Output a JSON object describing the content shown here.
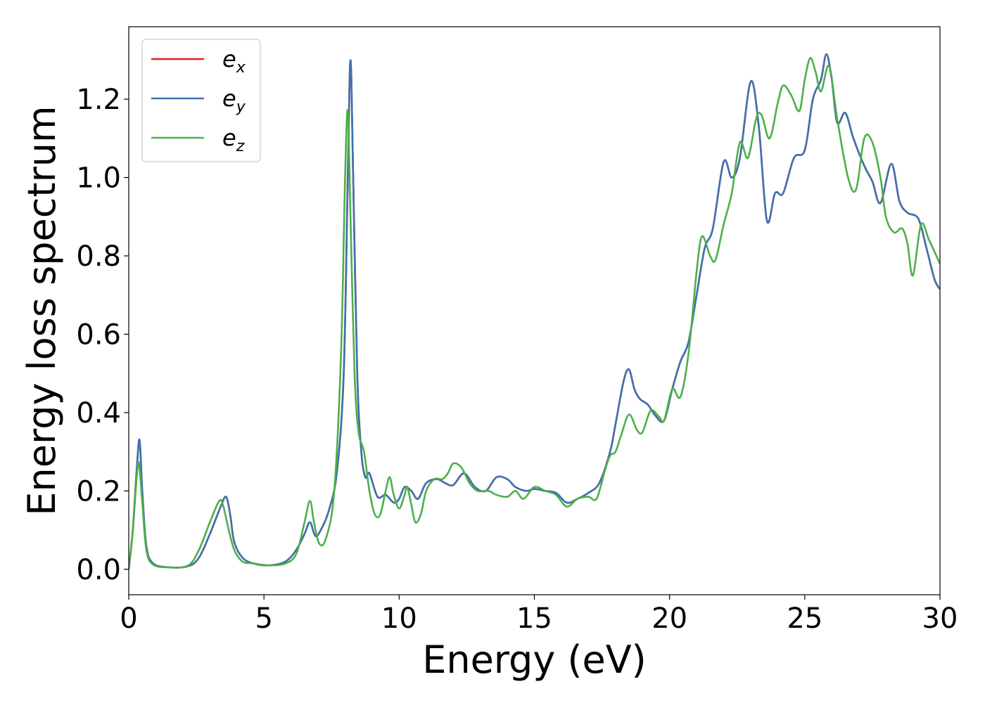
{
  "chart_data": {
    "type": "line",
    "title": "",
    "xlabel": "Energy (eV)",
    "ylabel": "Energy loss spectrum",
    "xlim": [
      0,
      30
    ],
    "ylim": [
      -0.065,
      1.385
    ],
    "xticks": [
      0,
      5,
      10,
      15,
      20,
      25,
      30
    ],
    "yticks": [
      0.0,
      0.2,
      0.4,
      0.6,
      0.8,
      1.0,
      1.2
    ],
    "xtick_labels": [
      "0",
      "5",
      "10",
      "15",
      "20",
      "25",
      "30"
    ],
    "ytick_labels": [
      "0.0",
      "0.2",
      "0.4",
      "0.6",
      "0.8",
      "1.0",
      "1.2"
    ],
    "grid": false,
    "legend": "top-left",
    "series": [
      {
        "name": "e",
        "sub": "x",
        "color": "#e41a1c",
        "points": [
          [
            0,
            0
          ],
          [
            0.15,
            0.1
          ],
          [
            0.3,
            0.26
          ],
          [
            0.4,
            0.33
          ],
          [
            0.5,
            0.2
          ],
          [
            0.65,
            0.06
          ],
          [
            0.9,
            0.015
          ],
          [
            1.5,
            0.005
          ],
          [
            2.2,
            0.008
          ],
          [
            2.6,
            0.03
          ],
          [
            3.0,
            0.09
          ],
          [
            3.4,
            0.16
          ],
          [
            3.6,
            0.185
          ],
          [
            3.75,
            0.14
          ],
          [
            3.9,
            0.07
          ],
          [
            4.2,
            0.03
          ],
          [
            4.6,
            0.015
          ],
          [
            5.2,
            0.01
          ],
          [
            5.8,
            0.02
          ],
          [
            6.2,
            0.05
          ],
          [
            6.5,
            0.09
          ],
          [
            6.7,
            0.12
          ],
          [
            6.9,
            0.085
          ],
          [
            7.1,
            0.1
          ],
          [
            7.4,
            0.15
          ],
          [
            7.7,
            0.25
          ],
          [
            7.95,
            0.5
          ],
          [
            8.1,
            1.0
          ],
          [
            8.2,
            1.3
          ],
          [
            8.3,
            1.0
          ],
          [
            8.45,
            0.5
          ],
          [
            8.6,
            0.3
          ],
          [
            8.75,
            0.235
          ],
          [
            8.9,
            0.245
          ],
          [
            9.2,
            0.185
          ],
          [
            9.5,
            0.19
          ],
          [
            9.8,
            0.17
          ],
          [
            10.0,
            0.18
          ],
          [
            10.2,
            0.21
          ],
          [
            10.45,
            0.2
          ],
          [
            10.7,
            0.18
          ],
          [
            11.0,
            0.22
          ],
          [
            11.4,
            0.23
          ],
          [
            11.7,
            0.22
          ],
          [
            12.0,
            0.215
          ],
          [
            12.4,
            0.245
          ],
          [
            12.8,
            0.21
          ],
          [
            13.2,
            0.2
          ],
          [
            13.6,
            0.235
          ],
          [
            14.0,
            0.23
          ],
          [
            14.3,
            0.21
          ],
          [
            14.7,
            0.2
          ],
          [
            15.0,
            0.205
          ],
          [
            15.4,
            0.2
          ],
          [
            15.8,
            0.195
          ],
          [
            16.2,
            0.17
          ],
          [
            16.6,
            0.18
          ],
          [
            17.0,
            0.195
          ],
          [
            17.4,
            0.22
          ],
          [
            17.8,
            0.3
          ],
          [
            18.0,
            0.37
          ],
          [
            18.3,
            0.48
          ],
          [
            18.5,
            0.51
          ],
          [
            18.7,
            0.46
          ],
          [
            18.9,
            0.435
          ],
          [
            19.2,
            0.42
          ],
          [
            19.5,
            0.39
          ],
          [
            19.8,
            0.38
          ],
          [
            20.1,
            0.46
          ],
          [
            20.4,
            0.53
          ],
          [
            20.7,
            0.58
          ],
          [
            21.0,
            0.7
          ],
          [
            21.3,
            0.82
          ],
          [
            21.6,
            0.87
          ],
          [
            22.0,
            1.04
          ],
          [
            22.3,
            1.0
          ],
          [
            22.6,
            1.05
          ],
          [
            23.0,
            1.245
          ],
          [
            23.3,
            1.13
          ],
          [
            23.6,
            0.89
          ],
          [
            23.9,
            0.96
          ],
          [
            24.2,
            0.96
          ],
          [
            24.6,
            1.05
          ],
          [
            25.0,
            1.07
          ],
          [
            25.3,
            1.2
          ],
          [
            25.6,
            1.25
          ],
          [
            25.8,
            1.315
          ],
          [
            26.0,
            1.25
          ],
          [
            26.2,
            1.14
          ],
          [
            26.5,
            1.165
          ],
          [
            26.8,
            1.1
          ],
          [
            27.2,
            1.03
          ],
          [
            27.5,
            0.99
          ],
          [
            27.8,
            0.935
          ],
          [
            28.2,
            1.035
          ],
          [
            28.5,
            0.94
          ],
          [
            28.8,
            0.91
          ],
          [
            29.2,
            0.895
          ],
          [
            29.5,
            0.82
          ],
          [
            29.8,
            0.74
          ],
          [
            30.0,
            0.715
          ]
        ]
      },
      {
        "name": "e",
        "sub": "y",
        "color": "#3d73b0",
        "points": [
          [
            0,
            0
          ],
          [
            0.15,
            0.1
          ],
          [
            0.3,
            0.26
          ],
          [
            0.4,
            0.33
          ],
          [
            0.5,
            0.2
          ],
          [
            0.65,
            0.06
          ],
          [
            0.9,
            0.015
          ],
          [
            1.5,
            0.005
          ],
          [
            2.2,
            0.008
          ],
          [
            2.6,
            0.03
          ],
          [
            3.0,
            0.09
          ],
          [
            3.4,
            0.16
          ],
          [
            3.6,
            0.185
          ],
          [
            3.75,
            0.14
          ],
          [
            3.9,
            0.07
          ],
          [
            4.2,
            0.03
          ],
          [
            4.6,
            0.015
          ],
          [
            5.2,
            0.01
          ],
          [
            5.8,
            0.02
          ],
          [
            6.2,
            0.05
          ],
          [
            6.5,
            0.09
          ],
          [
            6.7,
            0.12
          ],
          [
            6.9,
            0.085
          ],
          [
            7.1,
            0.1
          ],
          [
            7.4,
            0.15
          ],
          [
            7.7,
            0.25
          ],
          [
            7.95,
            0.5
          ],
          [
            8.1,
            1.0
          ],
          [
            8.2,
            1.3
          ],
          [
            8.3,
            1.0
          ],
          [
            8.45,
            0.5
          ],
          [
            8.6,
            0.3
          ],
          [
            8.75,
            0.235
          ],
          [
            8.9,
            0.245
          ],
          [
            9.2,
            0.185
          ],
          [
            9.5,
            0.19
          ],
          [
            9.8,
            0.17
          ],
          [
            10.0,
            0.18
          ],
          [
            10.2,
            0.21
          ],
          [
            10.45,
            0.2
          ],
          [
            10.7,
            0.18
          ],
          [
            11.0,
            0.22
          ],
          [
            11.4,
            0.23
          ],
          [
            11.7,
            0.22
          ],
          [
            12.0,
            0.215
          ],
          [
            12.4,
            0.245
          ],
          [
            12.8,
            0.21
          ],
          [
            13.2,
            0.2
          ],
          [
            13.6,
            0.235
          ],
          [
            14.0,
            0.23
          ],
          [
            14.3,
            0.21
          ],
          [
            14.7,
            0.2
          ],
          [
            15.0,
            0.205
          ],
          [
            15.4,
            0.2
          ],
          [
            15.8,
            0.195
          ],
          [
            16.2,
            0.17
          ],
          [
            16.6,
            0.18
          ],
          [
            17.0,
            0.195
          ],
          [
            17.4,
            0.22
          ],
          [
            17.8,
            0.3
          ],
          [
            18.0,
            0.37
          ],
          [
            18.3,
            0.48
          ],
          [
            18.5,
            0.51
          ],
          [
            18.7,
            0.46
          ],
          [
            18.9,
            0.435
          ],
          [
            19.2,
            0.42
          ],
          [
            19.5,
            0.39
          ],
          [
            19.8,
            0.38
          ],
          [
            20.1,
            0.46
          ],
          [
            20.4,
            0.53
          ],
          [
            20.7,
            0.58
          ],
          [
            21.0,
            0.7
          ],
          [
            21.3,
            0.82
          ],
          [
            21.6,
            0.87
          ],
          [
            22.0,
            1.04
          ],
          [
            22.3,
            1.0
          ],
          [
            22.6,
            1.05
          ],
          [
            23.0,
            1.245
          ],
          [
            23.3,
            1.13
          ],
          [
            23.6,
            0.89
          ],
          [
            23.9,
            0.96
          ],
          [
            24.2,
            0.96
          ],
          [
            24.6,
            1.05
          ],
          [
            25.0,
            1.07
          ],
          [
            25.3,
            1.2
          ],
          [
            25.6,
            1.25
          ],
          [
            25.8,
            1.315
          ],
          [
            26.0,
            1.25
          ],
          [
            26.2,
            1.14
          ],
          [
            26.5,
            1.165
          ],
          [
            26.8,
            1.1
          ],
          [
            27.2,
            1.03
          ],
          [
            27.5,
            0.99
          ],
          [
            27.8,
            0.935
          ],
          [
            28.2,
            1.035
          ],
          [
            28.5,
            0.94
          ],
          [
            28.8,
            0.91
          ],
          [
            29.2,
            0.895
          ],
          [
            29.5,
            0.82
          ],
          [
            29.8,
            0.74
          ],
          [
            30.0,
            0.715
          ]
        ]
      },
      {
        "name": "e",
        "sub": "z",
        "color": "#4daf4a",
        "points": [
          [
            0,
            0
          ],
          [
            0.15,
            0.1
          ],
          [
            0.3,
            0.24
          ],
          [
            0.38,
            0.27
          ],
          [
            0.5,
            0.17
          ],
          [
            0.65,
            0.05
          ],
          [
            0.9,
            0.012
          ],
          [
            1.5,
            0.005
          ],
          [
            2.2,
            0.01
          ],
          [
            2.6,
            0.05
          ],
          [
            3.0,
            0.12
          ],
          [
            3.35,
            0.175
          ],
          [
            3.5,
            0.16
          ],
          [
            3.7,
            0.1
          ],
          [
            3.9,
            0.05
          ],
          [
            4.2,
            0.02
          ],
          [
            4.6,
            0.015
          ],
          [
            5.2,
            0.01
          ],
          [
            5.8,
            0.015
          ],
          [
            6.2,
            0.04
          ],
          [
            6.5,
            0.12
          ],
          [
            6.7,
            0.175
          ],
          [
            6.85,
            0.12
          ],
          [
            7.05,
            0.065
          ],
          [
            7.3,
            0.08
          ],
          [
            7.6,
            0.2
          ],
          [
            7.85,
            0.55
          ],
          [
            8.0,
            1.0
          ],
          [
            8.1,
            1.17
          ],
          [
            8.2,
            0.9
          ],
          [
            8.35,
            0.5
          ],
          [
            8.5,
            0.35
          ],
          [
            8.7,
            0.3
          ],
          [
            8.9,
            0.2
          ],
          [
            9.1,
            0.14
          ],
          [
            9.3,
            0.14
          ],
          [
            9.5,
            0.2
          ],
          [
            9.65,
            0.235
          ],
          [
            9.8,
            0.19
          ],
          [
            10.0,
            0.155
          ],
          [
            10.2,
            0.19
          ],
          [
            10.3,
            0.21
          ],
          [
            10.45,
            0.165
          ],
          [
            10.6,
            0.12
          ],
          [
            10.8,
            0.14
          ],
          [
            11.0,
            0.2
          ],
          [
            11.3,
            0.23
          ],
          [
            11.6,
            0.23
          ],
          [
            11.8,
            0.245
          ],
          [
            12.0,
            0.27
          ],
          [
            12.3,
            0.26
          ],
          [
            12.6,
            0.22
          ],
          [
            12.9,
            0.2
          ],
          [
            13.3,
            0.2
          ],
          [
            13.6,
            0.19
          ],
          [
            14.0,
            0.185
          ],
          [
            14.3,
            0.2
          ],
          [
            14.6,
            0.18
          ],
          [
            15.0,
            0.21
          ],
          [
            15.4,
            0.2
          ],
          [
            15.8,
            0.19
          ],
          [
            16.2,
            0.16
          ],
          [
            16.6,
            0.18
          ],
          [
            17.0,
            0.185
          ],
          [
            17.3,
            0.18
          ],
          [
            17.6,
            0.25
          ],
          [
            17.8,
            0.29
          ],
          [
            18.0,
            0.3
          ],
          [
            18.2,
            0.34
          ],
          [
            18.5,
            0.395
          ],
          [
            18.8,
            0.355
          ],
          [
            19.0,
            0.35
          ],
          [
            19.3,
            0.405
          ],
          [
            19.6,
            0.39
          ],
          [
            19.8,
            0.38
          ],
          [
            20.1,
            0.46
          ],
          [
            20.4,
            0.44
          ],
          [
            20.7,
            0.55
          ],
          [
            21.0,
            0.76
          ],
          [
            21.2,
            0.85
          ],
          [
            21.5,
            0.8
          ],
          [
            21.7,
            0.79
          ],
          [
            22.0,
            0.88
          ],
          [
            22.3,
            0.96
          ],
          [
            22.6,
            1.09
          ],
          [
            22.9,
            1.05
          ],
          [
            23.2,
            1.15
          ],
          [
            23.4,
            1.16
          ],
          [
            23.7,
            1.1
          ],
          [
            24.0,
            1.19
          ],
          [
            24.2,
            1.235
          ],
          [
            24.5,
            1.21
          ],
          [
            24.8,
            1.17
          ],
          [
            25.0,
            1.25
          ],
          [
            25.2,
            1.305
          ],
          [
            25.4,
            1.27
          ],
          [
            25.6,
            1.22
          ],
          [
            25.9,
            1.285
          ],
          [
            26.2,
            1.15
          ],
          [
            26.6,
            1.0
          ],
          [
            26.9,
            0.97
          ],
          [
            27.2,
            1.1
          ],
          [
            27.5,
            1.09
          ],
          [
            27.8,
            1.0
          ],
          [
            28.0,
            0.9
          ],
          [
            28.3,
            0.86
          ],
          [
            28.6,
            0.87
          ],
          [
            28.8,
            0.83
          ],
          [
            29.0,
            0.75
          ],
          [
            29.3,
            0.88
          ],
          [
            29.6,
            0.84
          ],
          [
            30.0,
            0.78
          ]
        ]
      }
    ]
  }
}
